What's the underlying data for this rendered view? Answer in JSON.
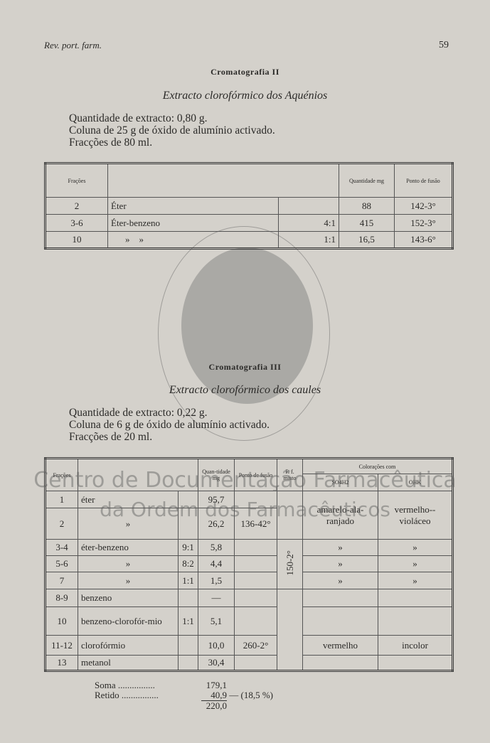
{
  "header": {
    "journal": "Rev. port. farm.",
    "page": "59"
  },
  "section1": {
    "title": "Cromatografia II",
    "subtitle": "Extracto clorofórmico dos Aquénios",
    "info": [
      "Quantidade de extracto: 0,80 g.",
      "Coluna de 25 g de óxido de alumínio activado.",
      "Fracções de 80 ml."
    ],
    "table": {
      "headers": {
        "fracoes": "Frações",
        "quantidade": "Quantidade mg",
        "ponto": "Ponto de fusão"
      },
      "rows": [
        {
          "fr": "2",
          "solvent": "Éter",
          "ratio": "",
          "qty": "88",
          "pf": "142-3°"
        },
        {
          "fr": "3-6",
          "solvent": "Éter-benzeno",
          "ratio": "4:1",
          "qty": "415",
          "pf": "152-3°"
        },
        {
          "fr": "10",
          "solvent": "»    »",
          "ratio": "1:1",
          "qty": "16,5",
          "pf": "143-6°"
        }
      ]
    }
  },
  "section2": {
    "title": "Cromatografia III",
    "subtitle": "Extracto clorofórmico dos caules",
    "info": [
      "Quantidade de extracto: 0,22 g.",
      "Coluna de 6 g de óxido de alumínio activado.",
      "Fracções de 20 ml."
    ],
    "table": {
      "headers": {
        "fracoes": "Frações",
        "quantidade": "Quan-tidade mg",
        "ponto": "Ponto de fusão",
        "pfmisto": "P. f. misto",
        "coloracoes": "Colorações com",
        "so4h2": "SO4H2",
        "ohk": "OHK"
      },
      "pfmisto_value": "150-2°",
      "rows": [
        {
          "fr": "1",
          "solvent": "éter",
          "ratio": "",
          "qty": "95,7",
          "pf": "",
          "so4": "",
          "ohk": ""
        },
        {
          "fr": "2",
          "solvent": "»",
          "ratio": "",
          "qty": "26,2",
          "pf": "136-42°",
          "so4": "amarelo-ala-ranjado",
          "ohk": "vermelho--violáceo"
        },
        {
          "fr": "3-4",
          "solvent": "éter-benzeno",
          "ratio": "9:1",
          "qty": "5,8",
          "pf": "",
          "so4": "»",
          "ohk": "»"
        },
        {
          "fr": "5-6",
          "solvent": "»",
          "ratio": "8:2",
          "qty": "4,4",
          "pf": "",
          "so4": "»",
          "ohk": "»"
        },
        {
          "fr": "7",
          "solvent": "»",
          "ratio": "1:1",
          "qty": "1,5",
          "pf": "",
          "so4": "»",
          "ohk": "»"
        },
        {
          "fr": "8-9",
          "solvent": "benzeno",
          "ratio": "",
          "qty": "—",
          "pf": "",
          "so4": "",
          "ohk": ""
        },
        {
          "fr": "10",
          "solvent": "benzeno-clorofór-mio",
          "ratio": "1:1",
          "qty": "5,1",
          "pf": "",
          "so4": "",
          "ohk": ""
        },
        {
          "fr": "11-12",
          "solvent": "clorofórmio",
          "ratio": "",
          "qty": "10,0",
          "pf": "260-2°",
          "so4": "vermelho",
          "ohk": "incolor"
        },
        {
          "fr": "13",
          "solvent": "metanol",
          "ratio": "",
          "qty": "30,4",
          "pf": "",
          "so4": "",
          "ohk": ""
        }
      ]
    },
    "summary": {
      "soma_label": "Soma ................",
      "soma": "179,1",
      "retido_label": "Retido ................",
      "retido": "40,9",
      "retido_pct": "— (18,5 %)",
      "total": "220,0"
    }
  },
  "watermark": {
    "line1": "Centro de Documentação Farmacêutica",
    "line2": "da Ordem dos Farmacêuticos"
  }
}
